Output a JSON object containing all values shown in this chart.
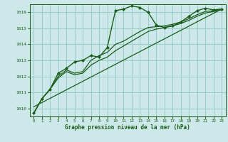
{
  "bg_color": "#cce8e8",
  "grid_color": "#99cccc",
  "line_color": "#1a5c1a",
  "xlabel": "Graphe pression niveau de la mer (hPa)",
  "xlim": [
    -0.5,
    23.5
  ],
  "ylim": [
    1009.5,
    1016.5
  ],
  "yticks": [
    1010,
    1011,
    1012,
    1013,
    1014,
    1015,
    1016
  ],
  "xticks": [
    0,
    1,
    2,
    3,
    4,
    5,
    6,
    7,
    8,
    9,
    10,
    11,
    12,
    13,
    14,
    15,
    16,
    17,
    18,
    19,
    20,
    21,
    22,
    23
  ],
  "series1_x": [
    0,
    1,
    2,
    3,
    4,
    5,
    6,
    7,
    8,
    9,
    10,
    11,
    12,
    13,
    14,
    15,
    16,
    17,
    18,
    19,
    20,
    21,
    22,
    23
  ],
  "series1_y": [
    1009.7,
    1010.6,
    1011.2,
    1012.2,
    1012.5,
    1012.9,
    1013.0,
    1013.3,
    1013.2,
    1013.8,
    1016.1,
    1016.2,
    1016.4,
    1016.3,
    1016.0,
    1015.2,
    1015.05,
    1015.15,
    1015.4,
    1015.75,
    1016.1,
    1016.25,
    1016.15,
    1016.2
  ],
  "series2_x": [
    0,
    1,
    2,
    3,
    4,
    5,
    6,
    7,
    8,
    9,
    10,
    11,
    12,
    13,
    14,
    15,
    16,
    17,
    18,
    19,
    20,
    21,
    22,
    23
  ],
  "series2_y": [
    1009.7,
    1010.6,
    1011.2,
    1011.9,
    1012.3,
    1012.1,
    1012.2,
    1012.7,
    1013.0,
    1013.2,
    1013.6,
    1013.9,
    1014.2,
    1014.5,
    1014.8,
    1014.95,
    1015.05,
    1015.15,
    1015.3,
    1015.5,
    1015.75,
    1015.95,
    1016.05,
    1016.15
  ],
  "series3_x": [
    0,
    1,
    2,
    3,
    4,
    5,
    6,
    7,
    8,
    9,
    10,
    11,
    12,
    13,
    14,
    15,
    16,
    17,
    18,
    19,
    20,
    21,
    22,
    23
  ],
  "series3_y": [
    1009.7,
    1010.6,
    1011.2,
    1012.0,
    1012.4,
    1012.2,
    1012.3,
    1013.0,
    1013.3,
    1013.5,
    1014.0,
    1014.2,
    1014.5,
    1014.8,
    1015.05,
    1015.1,
    1015.15,
    1015.25,
    1015.4,
    1015.6,
    1015.85,
    1016.05,
    1016.1,
    1016.2
  ],
  "trend_x": [
    0,
    23
  ],
  "trend_y": [
    1010.1,
    1016.2
  ]
}
